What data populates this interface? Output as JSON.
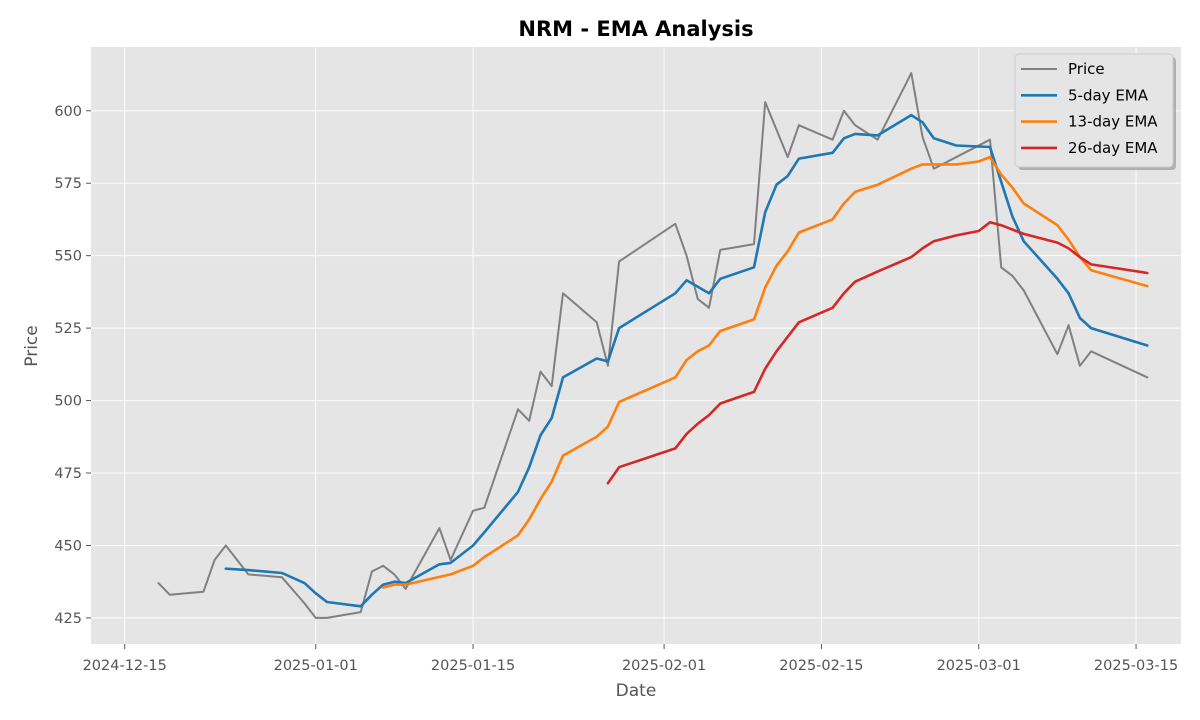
{
  "chart_data": {
    "type": "line",
    "title": "NRM - EMA Analysis",
    "xlabel": "Date",
    "ylabel": "Price",
    "xlim": [
      "2024-12-12",
      "2025-03-19"
    ],
    "ylim": [
      416,
      622
    ],
    "x_ticks": [
      "2024-12-15",
      "2025-01-01",
      "2025-01-15",
      "2025-02-01",
      "2025-02-15",
      "2025-03-01",
      "2025-03-15"
    ],
    "y_ticks": [
      425,
      450,
      475,
      500,
      525,
      550,
      575,
      600
    ],
    "grid": true,
    "legend_position": "top-right",
    "series": [
      {
        "name": "Price",
        "color": "#808080",
        "points": [
          [
            "2024-12-18",
            437
          ],
          [
            "2024-12-19",
            433
          ],
          [
            "2024-12-22",
            434
          ],
          [
            "2024-12-23",
            445
          ],
          [
            "2024-12-24",
            450
          ],
          [
            "2024-12-26",
            440
          ],
          [
            "2024-12-29",
            439
          ],
          [
            "2024-12-31",
            430
          ],
          [
            "2025-01-01",
            425
          ],
          [
            "2025-01-02",
            425
          ],
          [
            "2025-01-05",
            427
          ],
          [
            "2025-01-06",
            441
          ],
          [
            "2025-01-07",
            443
          ],
          [
            "2025-01-08",
            440
          ],
          [
            "2025-01-09",
            435
          ],
          [
            "2025-01-12",
            456
          ],
          [
            "2025-01-13",
            445
          ],
          [
            "2025-01-15",
            462
          ],
          [
            "2025-01-16",
            463
          ],
          [
            "2025-01-19",
            497
          ],
          [
            "2025-01-20",
            493
          ],
          [
            "2025-01-21",
            510
          ],
          [
            "2025-01-22",
            505
          ],
          [
            "2025-01-23",
            537
          ],
          [
            "2025-01-26",
            527
          ],
          [
            "2025-01-27",
            512
          ],
          [
            "2025-01-28",
            548
          ],
          [
            "2025-02-02",
            561
          ],
          [
            "2025-02-03",
            550
          ],
          [
            "2025-02-04",
            535
          ],
          [
            "2025-02-05",
            532
          ],
          [
            "2025-02-06",
            552
          ],
          [
            "2025-02-09",
            554
          ],
          [
            "2025-02-10",
            603
          ],
          [
            "2025-02-12",
            584
          ],
          [
            "2025-02-13",
            595
          ],
          [
            "2025-02-16",
            590
          ],
          [
            "2025-02-17",
            600
          ],
          [
            "2025-02-18",
            595
          ],
          [
            "2025-02-20",
            590
          ],
          [
            "2025-02-23",
            613
          ],
          [
            "2025-02-24",
            591
          ],
          [
            "2025-02-25",
            580
          ],
          [
            "2025-03-02",
            590
          ],
          [
            "2025-03-03",
            546
          ],
          [
            "2025-03-04",
            543
          ],
          [
            "2025-03-05",
            538
          ],
          [
            "2025-03-08",
            516
          ],
          [
            "2025-03-09",
            526
          ],
          [
            "2025-03-10",
            512
          ],
          [
            "2025-03-11",
            517
          ],
          [
            "2025-03-16",
            508
          ]
        ]
      },
      {
        "name": "5-day EMA",
        "color": "#1f77b4",
        "points": [
          [
            "2024-12-24",
            442
          ],
          [
            "2024-12-26",
            441.5
          ],
          [
            "2024-12-29",
            440.5
          ],
          [
            "2024-12-31",
            437
          ],
          [
            "2025-01-01",
            433.5
          ],
          [
            "2025-01-02",
            430.5
          ],
          [
            "2025-01-05",
            429
          ],
          [
            "2025-01-06",
            433
          ],
          [
            "2025-01-07",
            436.5
          ],
          [
            "2025-01-08",
            437.5
          ],
          [
            "2025-01-09",
            437
          ],
          [
            "2025-01-12",
            443.5
          ],
          [
            "2025-01-13",
            444
          ],
          [
            "2025-01-15",
            450
          ],
          [
            "2025-01-16",
            454.5
          ],
          [
            "2025-01-19",
            468.5
          ],
          [
            "2025-01-20",
            477
          ],
          [
            "2025-01-21",
            488
          ],
          [
            "2025-01-22",
            494
          ],
          [
            "2025-01-23",
            508
          ],
          [
            "2025-01-26",
            514.5
          ],
          [
            "2025-01-27",
            513.5
          ],
          [
            "2025-01-28",
            525
          ],
          [
            "2025-02-02",
            537
          ],
          [
            "2025-02-03",
            541.5
          ],
          [
            "2025-02-05",
            537
          ],
          [
            "2025-02-06",
            542
          ],
          [
            "2025-02-09",
            546
          ],
          [
            "2025-02-10",
            565
          ],
          [
            "2025-02-11",
            574.5
          ],
          [
            "2025-02-12",
            577.5
          ],
          [
            "2025-02-13",
            583.5
          ],
          [
            "2025-02-16",
            585.5
          ],
          [
            "2025-02-17",
            590.5
          ],
          [
            "2025-02-18",
            592
          ],
          [
            "2025-02-20",
            591.5
          ],
          [
            "2025-02-23",
            598.5
          ],
          [
            "2025-02-24",
            596
          ],
          [
            "2025-02-25",
            590.5
          ],
          [
            "2025-02-27",
            588
          ],
          [
            "2025-03-02",
            587.5
          ],
          [
            "2025-03-03",
            575.5
          ],
          [
            "2025-03-04",
            563.5
          ],
          [
            "2025-03-05",
            555
          ],
          [
            "2025-03-08",
            542
          ],
          [
            "2025-03-09",
            537
          ],
          [
            "2025-03-10",
            528.5
          ],
          [
            "2025-03-11",
            525
          ],
          [
            "2025-03-16",
            519
          ]
        ]
      },
      {
        "name": "13-day EMA",
        "color": "#ff7f0e",
        "points": [
          [
            "2025-01-07",
            435.5
          ],
          [
            "2025-01-08",
            436.5
          ],
          [
            "2025-01-09",
            436.5
          ],
          [
            "2025-01-13",
            440
          ],
          [
            "2025-01-15",
            443
          ],
          [
            "2025-01-16",
            446
          ],
          [
            "2025-01-19",
            453.5
          ],
          [
            "2025-01-20",
            459
          ],
          [
            "2025-01-21",
            466
          ],
          [
            "2025-01-22",
            472
          ],
          [
            "2025-01-23",
            481
          ],
          [
            "2025-01-26",
            487.5
          ],
          [
            "2025-01-27",
            491
          ],
          [
            "2025-01-28",
            499.5
          ],
          [
            "2025-02-02",
            508
          ],
          [
            "2025-02-03",
            514
          ],
          [
            "2025-02-04",
            517
          ],
          [
            "2025-02-05",
            519
          ],
          [
            "2025-02-06",
            524
          ],
          [
            "2025-02-09",
            528
          ],
          [
            "2025-02-10",
            539
          ],
          [
            "2025-02-11",
            546.5
          ],
          [
            "2025-02-12",
            551.5
          ],
          [
            "2025-02-13",
            558
          ],
          [
            "2025-02-16",
            562.5
          ],
          [
            "2025-02-17",
            568
          ],
          [
            "2025-02-18",
            572
          ],
          [
            "2025-02-20",
            574.5
          ],
          [
            "2025-02-23",
            580
          ],
          [
            "2025-02-24",
            581.5
          ],
          [
            "2025-02-27",
            581.5
          ],
          [
            "2025-03-01",
            582.5
          ],
          [
            "2025-03-02",
            584
          ],
          [
            "2025-03-03",
            578
          ],
          [
            "2025-03-04",
            573.5
          ],
          [
            "2025-03-05",
            568
          ],
          [
            "2025-03-08",
            560.5
          ],
          [
            "2025-03-09",
            555.5
          ],
          [
            "2025-03-10",
            549.5
          ],
          [
            "2025-03-11",
            545
          ],
          [
            "2025-03-16",
            539.5
          ]
        ]
      },
      {
        "name": "26-day EMA",
        "color": "#d62728",
        "points": [
          [
            "2025-01-27",
            471.5
          ],
          [
            "2025-01-28",
            477
          ],
          [
            "2025-02-02",
            483.5
          ],
          [
            "2025-02-03",
            488.5
          ],
          [
            "2025-02-04",
            492
          ],
          [
            "2025-02-05",
            495
          ],
          [
            "2025-02-06",
            499
          ],
          [
            "2025-02-09",
            503
          ],
          [
            "2025-02-10",
            511
          ],
          [
            "2025-02-11",
            517
          ],
          [
            "2025-02-12",
            522
          ],
          [
            "2025-02-13",
            527
          ],
          [
            "2025-02-16",
            532
          ],
          [
            "2025-02-17",
            537
          ],
          [
            "2025-02-18",
            541
          ],
          [
            "2025-02-20",
            544.5
          ],
          [
            "2025-02-23",
            549.5
          ],
          [
            "2025-02-24",
            552.5
          ],
          [
            "2025-02-25",
            555
          ],
          [
            "2025-02-27",
            557
          ],
          [
            "2025-03-01",
            558.5
          ],
          [
            "2025-03-02",
            561.5
          ],
          [
            "2025-03-03",
            560.5
          ],
          [
            "2025-03-05",
            557.5
          ],
          [
            "2025-03-08",
            554.5
          ],
          [
            "2025-03-09",
            552.5
          ],
          [
            "2025-03-10",
            549.5
          ],
          [
            "2025-03-11",
            547
          ],
          [
            "2025-03-16",
            544
          ]
        ]
      }
    ]
  }
}
